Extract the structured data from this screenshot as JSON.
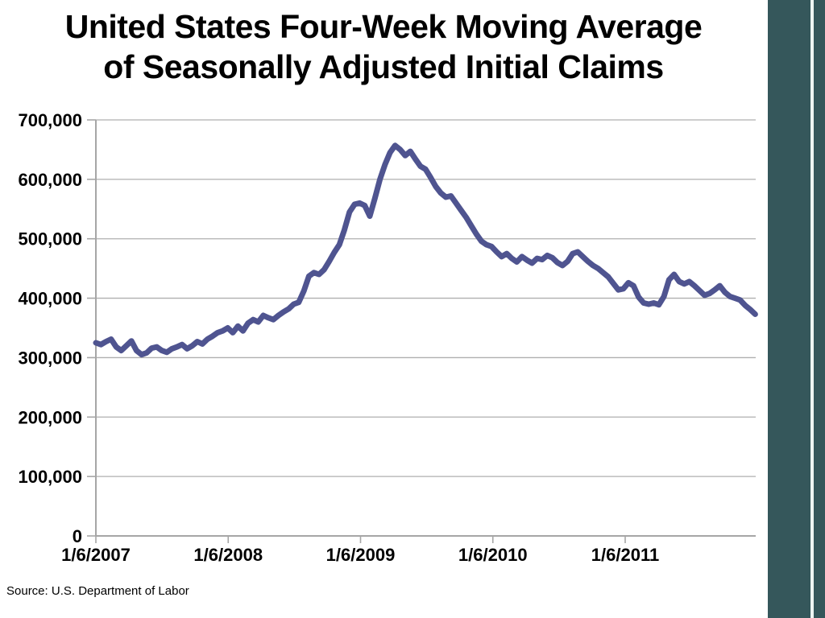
{
  "title_line1": "United States Four-Week Moving Average",
  "title_line2": "of Seasonally Adjusted Initial Claims",
  "source": "Source: U.S. Department of Labor",
  "colors": {
    "sidebar": "#35575B",
    "sidebar-stripe": "#EDF5F3"
  },
  "chart_data": {
    "type": "line",
    "title": "United States Four-Week Moving Average of Seasonally Adjusted Initial Claims",
    "source": "Source: U.S. Department of Labor",
    "xlabel": "",
    "ylabel": "",
    "ylim": [
      0,
      700000
    ],
    "grid": true,
    "legend": false,
    "grid_color": "#AFAFAF",
    "axis_color": "#A6A6A6",
    "y_ticks": [
      0,
      100000,
      200000,
      300000,
      400000,
      500000,
      600000,
      700000
    ],
    "y_tick_labels": [
      "0",
      "100,000",
      "200,000",
      "300,000",
      "400,000",
      "500,000",
      "600,000",
      "700,000"
    ],
    "x_tick_labels": [
      "1/6/2007",
      "1/6/2008",
      "1/6/2009",
      "1/6/2010",
      "1/6/2011"
    ],
    "x_tick_interval_days": 365.25,
    "series": [
      {
        "name": "Four-week moving average of seasonally adjusted initial claims",
        "color": "#4F5490",
        "start_date": "1/6/2007",
        "interval_days": 14,
        "values": [
          325000,
          322000,
          327000,
          331000,
          318000,
          312000,
          320000,
          328000,
          312000,
          305000,
          308000,
          316000,
          318000,
          312000,
          309000,
          315000,
          318000,
          322000,
          315000,
          320000,
          327000,
          323000,
          331000,
          336000,
          342000,
          345000,
          350000,
          342000,
          353000,
          345000,
          358000,
          364000,
          360000,
          371000,
          367000,
          364000,
          371000,
          377000,
          382000,
          390000,
          393000,
          412000,
          437000,
          443000,
          440000,
          448000,
          462000,
          477000,
          490000,
          515000,
          545000,
          558000,
          560000,
          556000,
          538000,
          568000,
          600000,
          625000,
          645000,
          657000,
          650000,
          640000,
          647000,
          634000,
          622000,
          617000,
          603000,
          588000,
          577000,
          570000,
          572000,
          560000,
          548000,
          536000,
          522000,
          508000,
          496000,
          490000,
          487000,
          478000,
          470000,
          475000,
          467000,
          461000,
          470000,
          464000,
          459000,
          467000,
          465000,
          472000,
          468000,
          460000,
          455000,
          462000,
          475000,
          478000,
          470000,
          462000,
          455000,
          450000,
          443000,
          436000,
          425000,
          414000,
          416000,
          426000,
          421000,
          402000,
          392000,
          390000,
          392000,
          389000,
          403000,
          431000,
          440000,
          428000,
          424000,
          428000,
          421000,
          413000,
          405000,
          408000,
          414000,
          421000,
          410000,
          403000,
          400000,
          397000,
          388000,
          381000,
          373000
        ]
      }
    ]
  }
}
